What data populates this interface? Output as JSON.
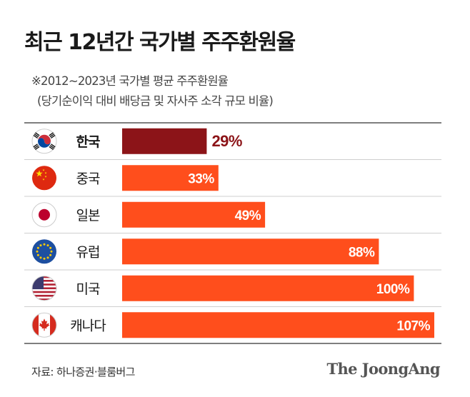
{
  "title": "최근 12년간 국가별 주주환원율",
  "subtitle_line1": "※2012~2023년  국가별 평균 주주환원율",
  "subtitle_line2": "(당기순이익 대비 배당금 및 자사주 소각 규모 비율)",
  "source": "자료: 하나증권·블룸버그",
  "brand": "The JoongAng",
  "colors": {
    "highlight": "#8c1418",
    "bar": "#ff4e1c",
    "label_outside_highlight": "#8c1418",
    "label_outside": "#e8431a",
    "label_inside": "#ffffff",
    "rule": "#555555"
  },
  "chart_data": {
    "type": "bar",
    "orientation": "horizontal",
    "unit": "%",
    "categories": [
      "한국",
      "중국",
      "일본",
      "유럽",
      "미국",
      "캐나다"
    ],
    "flag_icons": [
      "korea-flag-icon",
      "china-flag-icon",
      "japan-flag-icon",
      "eu-flag-icon",
      "usa-flag-icon",
      "canada-flag-icon"
    ],
    "values": [
      29,
      33,
      49,
      88,
      100,
      107
    ],
    "labels": [
      "29%",
      "33%",
      "49%",
      "88%",
      "100%",
      "107%"
    ],
    "highlight_index": 0,
    "xlim": [
      0,
      107
    ],
    "grid": false,
    "legend": "none"
  }
}
